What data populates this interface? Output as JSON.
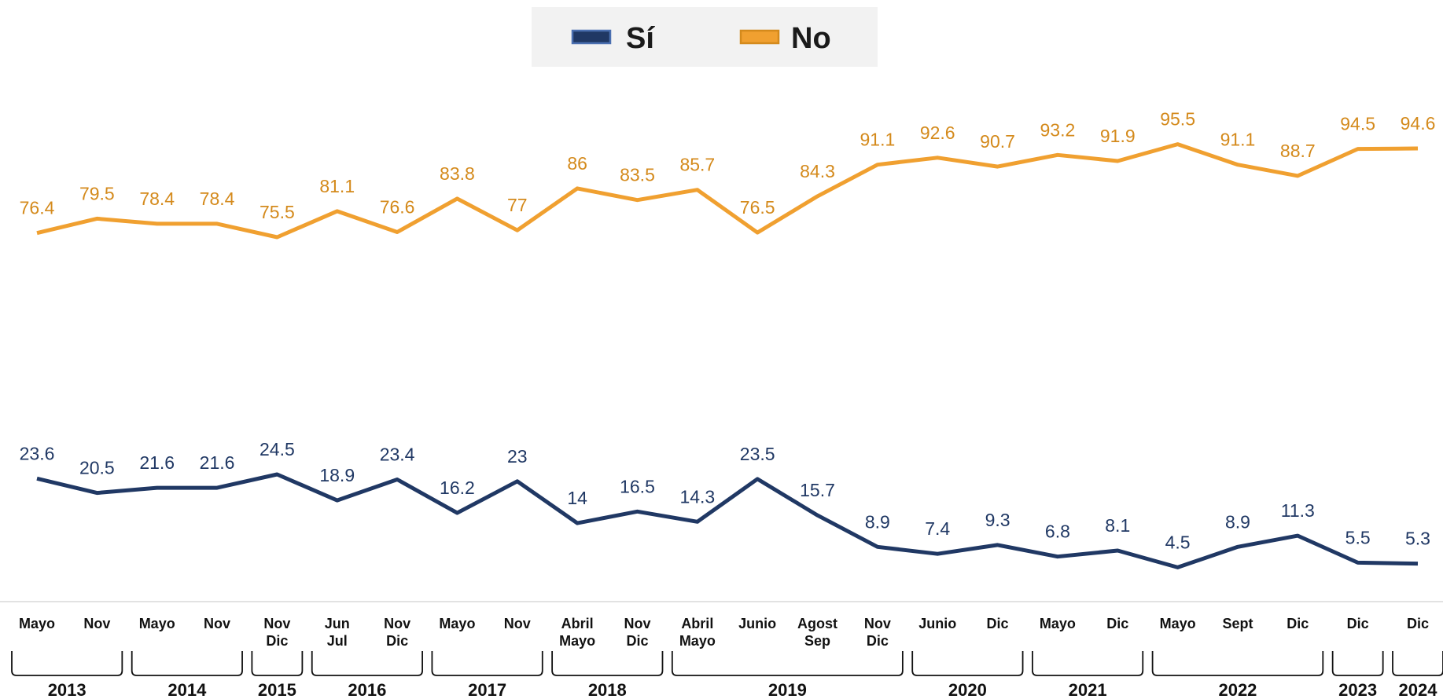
{
  "chart_data": {
    "type": "line",
    "categories": [
      [
        "Mayo"
      ],
      [
        "Nov"
      ],
      [
        "Mayo"
      ],
      [
        "Nov"
      ],
      [
        "Nov",
        "Dic"
      ],
      [
        "Jun",
        "Jul"
      ],
      [
        "Nov",
        "Dic"
      ],
      [
        "Mayo"
      ],
      [
        "Nov"
      ],
      [
        "Abril",
        "Mayo"
      ],
      [
        "Nov",
        "Dic"
      ],
      [
        "Abril",
        "Mayo"
      ],
      [
        "Junio"
      ],
      [
        "Agost",
        "Sep"
      ],
      [
        "Nov",
        "Dic"
      ],
      [
        "Junio"
      ],
      [
        "Dic"
      ],
      [
        "Mayo"
      ],
      [
        "Dic"
      ],
      [
        "Mayo"
      ],
      [
        "Sept"
      ],
      [
        "Dic"
      ],
      [
        "Dic"
      ],
      [
        "Dic"
      ]
    ],
    "groups": [
      {
        "label": "2013",
        "from": 0,
        "to": 1
      },
      {
        "label": "2014",
        "from": 2,
        "to": 3
      },
      {
        "label": "2015",
        "from": 4,
        "to": 4
      },
      {
        "label": "2016",
        "from": 5,
        "to": 6
      },
      {
        "label": "2017",
        "from": 7,
        "to": 8
      },
      {
        "label": "2018",
        "from": 9,
        "to": 10
      },
      {
        "label": "2019",
        "from": 11,
        "to": 14
      },
      {
        "label": "2020",
        "from": 15,
        "to": 16
      },
      {
        "label": "2021",
        "from": 17,
        "to": 18
      },
      {
        "label": "2022",
        "from": 19,
        "to": 21
      },
      {
        "label": "2023",
        "from": 22,
        "to": 22
      },
      {
        "label": "2024",
        "from": 23,
        "to": 23
      }
    ],
    "series": [
      {
        "name": "Sí",
        "color": "#203864",
        "label_color": "#203864",
        "values": [
          23.6,
          20.5,
          21.6,
          21.6,
          24.5,
          18.9,
          23.4,
          16.2,
          23,
          14,
          16.5,
          14.3,
          23.5,
          15.7,
          8.9,
          7.4,
          9.3,
          6.8,
          8.1,
          4.5,
          8.9,
          11.3,
          5.5,
          5.3
        ]
      },
      {
        "name": "No",
        "color": "#f0a030",
        "label_color": "#d48a1c",
        "values": [
          76.4,
          79.5,
          78.4,
          78.4,
          75.5,
          81.1,
          76.6,
          83.8,
          77,
          86,
          83.5,
          85.7,
          76.5,
          84.3,
          91.1,
          92.6,
          90.7,
          93.2,
          91.9,
          95.5,
          91.1,
          88.7,
          94.5,
          94.6
        ]
      }
    ],
    "ylim": [
      0,
      100
    ]
  }
}
